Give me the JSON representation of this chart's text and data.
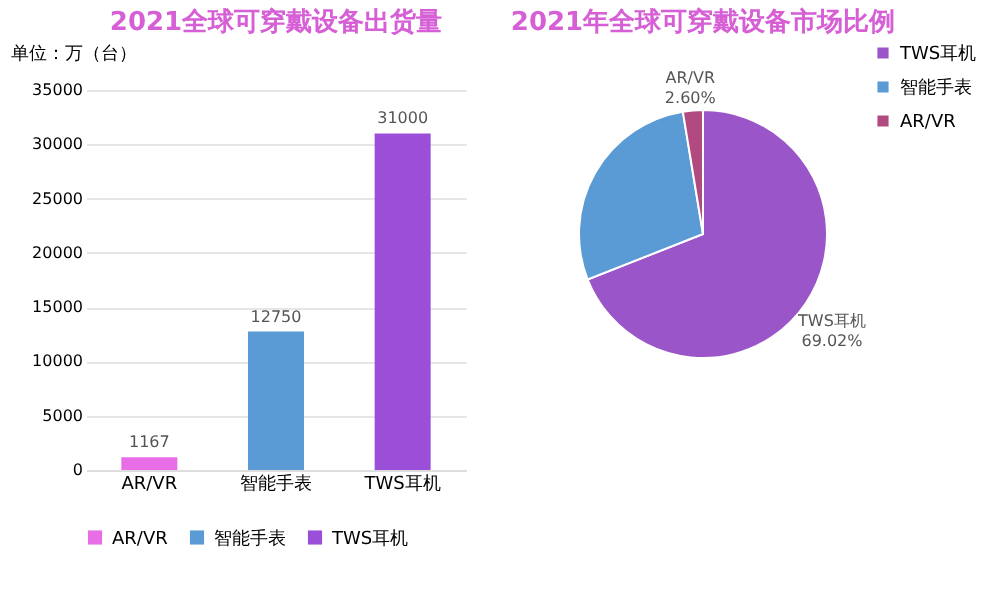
{
  "chart_data": [
    {
      "type": "bar",
      "title": "2021全球可穿戴设备出货量",
      "ylabel": "单位：万（台）",
      "categories": [
        "AR/VR",
        "智能手表",
        "TWS耳机"
      ],
      "stacked": true,
      "series": [
        {
          "name": "AR/VR",
          "color": "#e86ee8",
          "values": [
            1167,
            null,
            null
          ]
        },
        {
          "name": "智能手表",
          "color": "#5b9bd5",
          "values": [
            null,
            12750,
            null
          ]
        },
        {
          "name": "TWS耳机",
          "color": "#9b4fd8",
          "values": [
            null,
            null,
            31000
          ]
        }
      ],
      "ylim": [
        0,
        35000
      ],
      "yticks": [
        0,
        5000,
        10000,
        15000,
        20000,
        25000,
        30000,
        35000
      ],
      "grid": "y",
      "data_labels": true,
      "legend": "bottom"
    },
    {
      "type": "pie",
      "title": "2021年全球可穿戴设备市场比例",
      "categories": [
        "TWS耳机",
        "智能手表",
        "AR/VR"
      ],
      "values": [
        69.02,
        28.38,
        2.6
      ],
      "colors": [
        "#9a55c8",
        "#5b9bd5",
        "#b04a80"
      ],
      "value_labels": [
        "69.02%",
        null,
        "2.60%"
      ],
      "legend": "right"
    }
  ]
}
